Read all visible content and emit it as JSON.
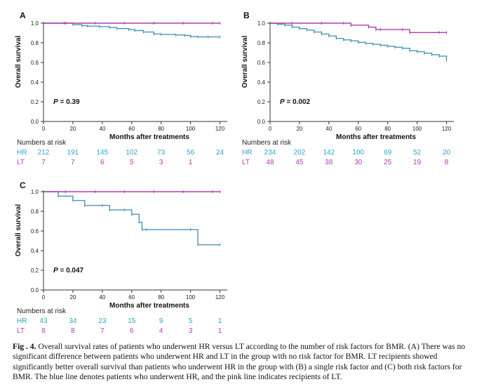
{
  "caption": {
    "label": "Fig . 4.",
    "text": "Overall survival rates of patients who underwent HR versus LT according to the number of risk factors for BMR. (A) There was no significant difference between patients who underwent HR and LT in the group with no risk factor for BMR. LT recipients showed significantly better overall survival than patients who underwent HR in the group with (B) a single risk factor and (C) both risk factors for BMR. The blue line denotes patients who underwent HR, and the pink line indicates recipients of LT."
  },
  "colors": {
    "hr": "#4a95b5",
    "lt": "#b23bb2",
    "hr_text": "#2aa6c8",
    "lt_text": "#b23bb2",
    "axis": "#333333"
  },
  "chart_data": [
    {
      "panel": "A",
      "type": "line",
      "xlabel": "Months after treatments",
      "ylabel": "Overall survival",
      "xlim": [
        0,
        125
      ],
      "ylim": [
        0,
        1.0
      ],
      "xticks": [
        0,
        20,
        40,
        60,
        80,
        100,
        120
      ],
      "yticks": [
        0.0,
        0.2,
        0.4,
        0.6,
        0.8,
        1.0
      ],
      "annotation": "P = 0.39",
      "series": [
        {
          "name": "HR",
          "x": [
            0,
            14,
            20,
            26,
            30,
            38,
            45,
            50,
            58,
            62,
            68,
            75,
            80,
            90,
            96,
            100,
            105,
            112,
            120
          ],
          "y": [
            1.0,
            1.0,
            0.985,
            0.975,
            0.97,
            0.965,
            0.955,
            0.945,
            0.935,
            0.925,
            0.91,
            0.89,
            0.885,
            0.88,
            0.875,
            0.865,
            0.86,
            0.86,
            0.86
          ]
        },
        {
          "name": "LT",
          "x": [
            0,
            120
          ],
          "y": [
            1.0,
            1.0
          ]
        }
      ],
      "risk_table": {
        "title": "Numbers at risk",
        "rows": [
          {
            "label": "HR",
            "values": [
              "212",
              "191",
              "145",
              "102",
              "73",
              "56",
              "24"
            ]
          },
          {
            "label": "LT",
            "values": [
              "7",
              "7",
              "6",
              "5",
              "3",
              "1",
              ""
            ]
          }
        ]
      }
    },
    {
      "panel": "B",
      "type": "line",
      "xlabel": "Months after treatments",
      "ylabel": "Overall survival",
      "xlim": [
        0,
        125
      ],
      "ylim": [
        0,
        1.0
      ],
      "xticks": [
        0,
        20,
        40,
        60,
        80,
        100,
        120
      ],
      "yticks": [
        0.0,
        0.2,
        0.4,
        0.6,
        0.8,
        1.0
      ],
      "annotation": "P = 0.002",
      "series": [
        {
          "name": "HR",
          "x": [
            0,
            5,
            10,
            15,
            20,
            25,
            30,
            35,
            40,
            45,
            50,
            55,
            60,
            65,
            70,
            75,
            80,
            85,
            90,
            95,
            100,
            105,
            110,
            115,
            120
          ],
          "y": [
            1.0,
            0.99,
            0.98,
            0.96,
            0.945,
            0.93,
            0.91,
            0.89,
            0.87,
            0.845,
            0.83,
            0.82,
            0.805,
            0.795,
            0.785,
            0.775,
            0.765,
            0.755,
            0.745,
            0.72,
            0.71,
            0.695,
            0.68,
            0.665,
            0.62
          ]
        },
        {
          "name": "LT",
          "x": [
            0,
            50,
            55,
            67,
            72,
            90,
            95,
            120
          ],
          "y": [
            1.0,
            1.0,
            0.98,
            0.96,
            0.935,
            0.935,
            0.905,
            0.905
          ]
        }
      ],
      "risk_table": {
        "title": "Numbers at risk",
        "rows": [
          {
            "label": "HR",
            "values": [
              "234",
              "202",
              "142",
              "100",
              "69",
              "52",
              "20"
            ]
          },
          {
            "label": "LT",
            "values": [
              "48",
              "45",
              "38",
              "30",
              "25",
              "19",
              "8"
            ]
          }
        ]
      }
    },
    {
      "panel": "C",
      "type": "line",
      "xlabel": "Months after treatments",
      "ylabel": "Overall survival",
      "xlim": [
        0,
        125
      ],
      "ylim": [
        0,
        1.0
      ],
      "xticks": [
        0,
        20,
        40,
        60,
        80,
        100,
        120
      ],
      "yticks": [
        0.0,
        0.2,
        0.4,
        0.6,
        0.8,
        1.0
      ],
      "annotation": "P = 0.047",
      "series": [
        {
          "name": "HR",
          "x": [
            0,
            10,
            20,
            28,
            40,
            45,
            55,
            60,
            65,
            67,
            70,
            100,
            105,
            120
          ],
          "y": [
            1.0,
            0.955,
            0.91,
            0.86,
            0.86,
            0.815,
            0.815,
            0.77,
            0.69,
            0.615,
            0.615,
            0.615,
            0.46,
            0.46
          ]
        },
        {
          "name": "LT",
          "x": [
            0,
            120
          ],
          "y": [
            1.0,
            1.0
          ]
        }
      ],
      "risk_table": {
        "title": "Numbers at risk",
        "rows": [
          {
            "label": "HR",
            "values": [
              "43",
              "34",
              "23",
              "15",
              "9",
              "5",
              "1"
            ]
          },
          {
            "label": "LT",
            "values": [
              "8",
              "8",
              "7",
              "6",
              "4",
              "3",
              "1"
            ]
          }
        ]
      }
    }
  ]
}
